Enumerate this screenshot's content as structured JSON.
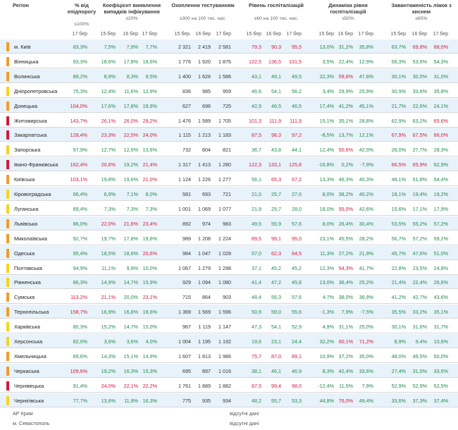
{
  "headers": {
    "region": "Регіон",
    "pct": {
      "title": "% від епідпорогу",
      "sub": "≤100%"
    },
    "coef": {
      "title": "Коефіцієнт виявлення випадків інфікування",
      "sub": "≤20%"
    },
    "testing": {
      "title": "Охоплення тестуванням",
      "sub": "≥300 на 100 тис. нас."
    },
    "hosp": {
      "title": "Рівень госпіталізацій",
      "sub": "≤60 на 100 тис. нас."
    },
    "dyn": {
      "title": "Динаміка рівня госпіталізацій",
      "sub": "≤50%"
    },
    "beds": {
      "title": "Завантаженість ліжок з киснем",
      "sub": "≤65%"
    }
  },
  "dates": {
    "pct": [
      "17 бер"
    ],
    "coef": [
      "15 бер",
      "16 бер",
      "17 бер"
    ],
    "testing": [
      "15 бер.",
      "16 бер",
      "17 бер"
    ],
    "hosp": [
      "15 бер",
      "16 бер",
      "17 бер"
    ],
    "dyn": [
      "15 бер",
      "16 бер",
      "17 бер"
    ],
    "beds": [
      "15 бер",
      "16 бер",
      "17 бер"
    ]
  },
  "colors": {
    "orange": "#f39c2a",
    "yellow": "#f4d41f",
    "red": "#d4193a",
    "green": "#21894a"
  },
  "rows": [
    {
      "name": "м. Київ",
      "mark": "orange",
      "pct": "83,3%",
      "coef": [
        "7,5%",
        "7,9%",
        "7,7%"
      ],
      "testing": [
        "2 321",
        "2 419",
        "2 581"
      ],
      "hosp": [
        "79,3",
        "90,3",
        "95,5"
      ],
      "dyn": [
        "13,0%",
        "31,2%",
        "35,8%"
      ],
      "beds": [
        "63,7%",
        "69,8%",
        "68,0%"
      ]
    },
    {
      "name": "Вінницька",
      "mark": "orange",
      "pct": "93,3%",
      "coef": [
        "18,6%",
        "17,8%",
        "18,6%"
      ],
      "testing": [
        "1 776",
        "1 920",
        "1 876"
      ],
      "hosp": [
        "122,5",
        "136,5",
        "131,5"
      ],
      "dyn": [
        "3,5%",
        "22,4%",
        "12,9%"
      ],
      "beds": [
        "56,3%",
        "53,6%",
        "54,3%"
      ]
    },
    {
      "name": "Волинська",
      "mark": "orange",
      "pct": "89,2%",
      "coef": [
        "8,9%",
        "8,3%",
        "9,5%"
      ],
      "testing": [
        "1 400",
        "1 626",
        "1 586"
      ],
      "hosp": [
        "43,1",
        "49,1",
        "49,5"
      ],
      "dyn": [
        "22,3%",
        "59,6%",
        "47,8%"
      ],
      "beds": [
        "30,1%",
        "30,5%",
        "31,0%"
      ]
    },
    {
      "name": "Дніпропетровська",
      "mark": "yellow",
      "pct": "75,3%",
      "coef": [
        "12,4%",
        "11,6%",
        "12,9%"
      ],
      "testing": [
        "836",
        "985",
        "959"
      ],
      "hosp": [
        "46,6",
        "54,1",
        "56,2"
      ],
      "dyn": [
        "3,4%",
        "29,9%",
        "25,9%"
      ],
      "beds": [
        "30,9%",
        "33,6%",
        "35,8%"
      ]
    },
    {
      "name": "Донецька",
      "mark": "orange",
      "pct": "104,0%",
      "coef": [
        "17,6%",
        "17,8%",
        "19,9%"
      ],
      "testing": [
        "627",
        "696",
        "725"
      ],
      "hosp": [
        "42,9",
        "46,5",
        "46,5"
      ],
      "dyn": [
        "17,4%",
        "41,2%",
        "45,1%"
      ],
      "beds": [
        "21,7%",
        "22,6%",
        "24,1%"
      ]
    },
    {
      "name": "Житомирська",
      "mark": "red",
      "pct": "143,7%",
      "coef": [
        "26,1%",
        "26,0%",
        "29,2%"
      ],
      "testing": [
        "1 476",
        "1 589",
        "1 705"
      ],
      "hosp": [
        "101,3",
        "111,9",
        "111,9"
      ],
      "dyn": [
        "15,1%",
        "35,1%",
        "28,8%"
      ],
      "beds": [
        "62,9%",
        "63,2%",
        "65,6%"
      ]
    },
    {
      "name": "Закарпатська",
      "mark": "red",
      "pct": "128,4%",
      "coef": [
        "23,3%",
        "22,5%",
        "24,0%"
      ],
      "testing": [
        "1 115",
        "1 213",
        "1 183"
      ],
      "hosp": [
        "87,5",
        "98,3",
        "97,2"
      ],
      "dyn": [
        "-8,5%",
        "13,7%",
        "12,1%"
      ],
      "beds": [
        "67,9%",
        "67,5%",
        "66,0%"
      ]
    },
    {
      "name": "Запорізька",
      "mark": "yellow",
      "pct": "97,9%",
      "coef": [
        "12,7%",
        "12,6%",
        "13,6%"
      ],
      "testing": [
        "732",
        "804",
        "821"
      ],
      "hosp": [
        "36,7",
        "43,8",
        "44,1"
      ],
      "dyn": [
        "12,4%",
        "50,6%",
        "42,0%"
      ],
      "beds": [
        "26,0%",
        "27,7%",
        "28,3%"
      ]
    },
    {
      "name": "Івано-Франківська",
      "mark": "red",
      "pct": "162,4%",
      "coef": [
        "20,6%",
        "19,2%",
        "21,4%"
      ],
      "testing": [
        "1 317",
        "1 413",
        "1 280"
      ],
      "hosp": [
        "122,3",
        "133,1",
        "125,8"
      ],
      "dyn": [
        "-16,8%",
        "0,2%",
        "-7,9%"
      ],
      "beds": [
        "66,5%",
        "65,9%",
        "62,9%"
      ]
    },
    {
      "name": "Київська",
      "mark": "orange",
      "pct": "103,1%",
      "coef": [
        "19,8%",
        "19,6%",
        "21,0%"
      ],
      "testing": [
        "1 124",
        "1 226",
        "1 277"
      ],
      "hosp": [
        "56,1",
        "65,3",
        "67,2"
      ],
      "dyn": [
        "13,3%",
        "46,3%",
        "40,3%"
      ],
      "beds": [
        "48,1%",
        "51,8%",
        "54,4%"
      ]
    },
    {
      "name": "Кіровоградська",
      "mark": "yellow",
      "pct": "66,4%",
      "coef": [
        "6,9%",
        "7,1%",
        "8,0%"
      ],
      "testing": [
        "581",
        "693",
        "721"
      ],
      "hosp": [
        "21,0",
        "25,7",
        "27,0"
      ],
      "dyn": [
        "8,0%",
        "38,2%",
        "40,2%"
      ],
      "beds": [
        "18,1%",
        "19,4%",
        "19,2%"
      ]
    },
    {
      "name": "Луганська",
      "mark": "yellow",
      "pct": "89,4%",
      "coef": [
        "7,3%",
        "7,3%",
        "7,3%"
      ],
      "testing": [
        "1 001",
        "1 069",
        "1 077"
      ],
      "hosp": [
        "21,9",
        "25,7",
        "28,0"
      ],
      "dyn": [
        "18,0%",
        "55,5%",
        "42,6%"
      ],
      "beds": [
        "15,6%",
        "17,1%",
        "17,9%"
      ]
    },
    {
      "name": "Львівська",
      "mark": "orange",
      "pct": "86,0%",
      "coef": [
        "22,0%",
        "21,6%",
        "23,4%"
      ],
      "testing": [
        "892",
        "974",
        "983"
      ],
      "hosp": [
        "49,5",
        "55,9",
        "57,6"
      ],
      "dyn": [
        "8,0%",
        "26,4%",
        "30,4%"
      ],
      "beds": [
        "53,5%",
        "55,2%",
        "57,2%"
      ]
    },
    {
      "name": "Миколаївська",
      "mark": "orange",
      "pct": "92,7%",
      "coef": [
        "19,7%",
        "17,8%",
        "19,6%"
      ],
      "testing": [
        "989",
        "1 208",
        "1 224"
      ],
      "hosp": [
        "89,5",
        "99,1",
        "95,0"
      ],
      "dyn": [
        "23,1%",
        "45,5%",
        "28,2%"
      ],
      "beds": [
        "56,7%",
        "57,2%",
        "59,2%"
      ]
    },
    {
      "name": "Одеська",
      "mark": "orange",
      "pct": "95,4%",
      "coef": [
        "18,5%",
        "18,6%",
        "20,6%"
      ],
      "testing": [
        "984",
        "1 047",
        "1 028"
      ],
      "hosp": [
        "57,0",
        "62,3",
        "64,5"
      ],
      "dyn": [
        "11,3%",
        "27,2%",
        "21,9%"
      ],
      "beds": [
        "45,7%",
        "47,6%",
        "51,0%"
      ]
    },
    {
      "name": "Полтавська",
      "mark": "yellow",
      "pct": "94,9%",
      "coef": [
        "11,1%",
        "9,9%",
        "10,0%"
      ],
      "testing": [
        "1 067",
        "1 279",
        "1 298"
      ],
      "hosp": [
        "37,1",
        "45,2",
        "45,2"
      ],
      "dyn": [
        "12,3%",
        "54,3%",
        "41,7%"
      ],
      "beds": [
        "22,8%",
        "23,5%",
        "24,8%"
      ]
    },
    {
      "name": "Рівненська",
      "mark": "yellow",
      "pct": "86,3%",
      "coef": [
        "14,9%",
        "14,7%",
        "15,9%"
      ],
      "testing": [
        "929",
        "1 094",
        "1 080"
      ],
      "hosp": [
        "41,4",
        "47,2",
        "45,8"
      ],
      "dyn": [
        "13,0%",
        "36,4%",
        "25,2%"
      ],
      "beds": [
        "21,4%",
        "22,4%",
        "26,6%"
      ]
    },
    {
      "name": "Сумська",
      "mark": "orange",
      "pct": "113,2%",
      "coef": [
        "21,1%",
        "20,0%",
        "23,1%"
      ],
      "testing": [
        "715",
        "864",
        "903"
      ],
      "hosp": [
        "48,4",
        "56,3",
        "57,6"
      ],
      "dyn": [
        "4,7%",
        "38,0%",
        "36,9%"
      ],
      "beds": [
        "41,2%",
        "42,7%",
        "43,6%"
      ]
    },
    {
      "name": "Тернопільська",
      "mark": "orange",
      "pct": "158,7%",
      "coef": [
        "16,9%",
        "16,8%",
        "18,6%"
      ],
      "testing": [
        "1 369",
        "1 569",
        "1 596"
      ],
      "hosp": [
        "50,9",
        "59,0",
        "55,6"
      ],
      "dyn": [
        "-1,3%",
        "7,9%",
        "-7,5%"
      ],
      "beds": [
        "35,5%",
        "33,2%",
        "35,1%"
      ]
    },
    {
      "name": "Харківська",
      "mark": "yellow",
      "pct": "80,3%",
      "coef": [
        "15,2%",
        "14,7%",
        "15,0%"
      ],
      "testing": [
        "967",
        "1 119",
        "1 147"
      ],
      "hosp": [
        "47,3",
        "54,1",
        "52,9"
      ],
      "dyn": [
        "4,9%",
        "31,1%",
        "25,0%"
      ],
      "beds": [
        "30,1%",
        "31,6%",
        "31,7%"
      ]
    },
    {
      "name": "Херсонська",
      "mark": "yellow",
      "pct": "82,0%",
      "coef": [
        "3,6%",
        "3,6%",
        "4,0%"
      ],
      "testing": [
        "1 004",
        "1 195",
        "1 192"
      ],
      "hosp": [
        "19,6",
        "23,1",
        "24,4"
      ],
      "dyn": [
        "32,2%",
        "60,1%",
        "71,2%"
      ],
      "beds": [
        "8,9%",
        "9,4%",
        "10,6%"
      ]
    },
    {
      "name": "Хмельницька",
      "mark": "orange",
      "pct": "89,6%",
      "coef": [
        "14,3%",
        "15,1%",
        "14,9%"
      ],
      "testing": [
        "1 607",
        "1 813",
        "1 986"
      ],
      "hosp": [
        "75,7",
        "87,0",
        "89,1"
      ],
      "dyn": [
        "10,9%",
        "37,2%",
        "35,0%"
      ],
      "beds": [
        "48,0%",
        "49,5%",
        "50,0%"
      ]
    },
    {
      "name": "Черкаська",
      "mark": "orange",
      "pct": "109,6%",
      "coef": [
        "19,2%",
        "16,3%",
        "15,3%"
      ],
      "testing": [
        "695",
        "897",
        "1 016"
      ],
      "hosp": [
        "38,1",
        "46,1",
        "46,9"
      ],
      "dyn": [
        "8,3%",
        "42,4%",
        "33,6%"
      ],
      "beds": [
        "27,4%",
        "31,5%",
        "33,6%"
      ]
    },
    {
      "name": "Чернівецька",
      "mark": "red",
      "pct": "91,4%",
      "coef": [
        "24,0%",
        "22,1%",
        "22,2%"
      ],
      "testing": [
        "1 761",
        "1 889",
        "1 882"
      ],
      "hosp": [
        "87,5",
        "99,4",
        "98,0"
      ],
      "dyn": [
        "-12,4%",
        "11,5%",
        "7,9%"
      ],
      "beds": [
        "52,9%",
        "52,9%",
        "52,5%"
      ]
    },
    {
      "name": "Чернігівська",
      "mark": "yellow",
      "pct": "77,7%",
      "coef": [
        "13,6%",
        "11,9%",
        "16,3%"
      ],
      "testing": [
        "775",
        "935",
        "934"
      ],
      "hosp": [
        "48,2",
        "55,7",
        "53,3"
      ],
      "dyn": [
        "44,8%",
        "76,0%",
        "49,4%"
      ],
      "beds": [
        "33,6%",
        "37,3%",
        "37,4%"
      ]
    }
  ],
  "footer": [
    {
      "name": "АР Крим",
      "note": "відсутні дані"
    },
    {
      "name": "м. Севастополь",
      "note": "відсутні дані"
    }
  ]
}
